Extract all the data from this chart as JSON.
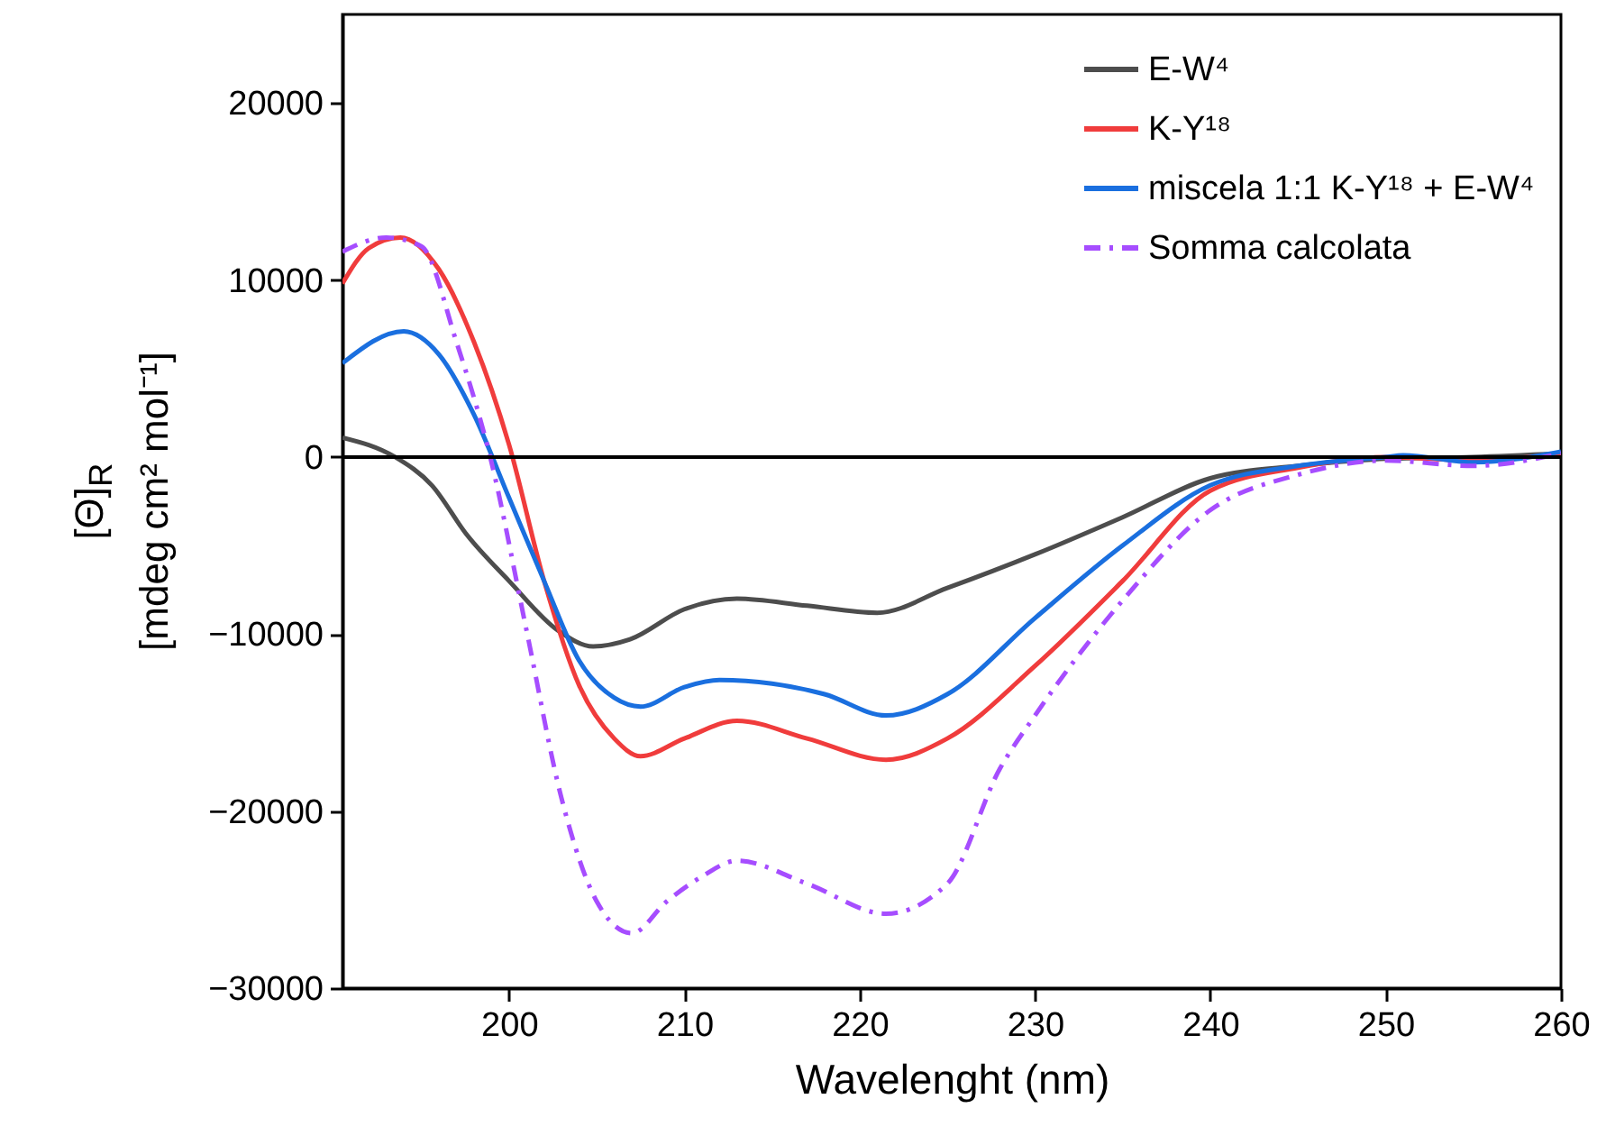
{
  "chart_data": {
    "type": "line",
    "xlabel": "Wavelenght (nm)",
    "ylabel": "[Θ]$_{R}$\n[mdeg cm² mol⁻¹]",
    "xlim": [
      190.5,
      260
    ],
    "xticks": [
      200,
      210,
      220,
      230,
      240,
      250,
      260
    ],
    "ylim": [
      -30000,
      25000
    ],
    "yticks": [
      -30000,
      -20000,
      -10000,
      0,
      10000,
      20000
    ],
    "grid": false,
    "legend": "top right",
    "ref_lines": [
      {
        "axis": "y",
        "value": 0,
        "color": "#000000"
      }
    ],
    "series": [
      {
        "name": "E-W⁴",
        "color": "#4d4d4d",
        "line_style": "solid",
        "x": [
          190.5,
          193.5,
          195.6,
          197.6,
          200,
          202.8,
          204.8,
          206.9,
          210,
          213,
          217,
          221,
          225,
          230,
          235,
          240,
          245,
          250,
          255,
          260
        ],
        "values": [
          1100,
          0,
          -1600,
          -4400,
          -7000,
          -9800,
          -10700,
          -10300,
          -8600,
          -8000,
          -8400,
          -8800,
          -7400,
          -5500,
          -3400,
          -1200,
          -500,
          -100,
          0,
          200
        ]
      },
      {
        "name": "K-Y¹⁸",
        "color": "#f03c3c",
        "line_style": "solid",
        "x": [
          190.5,
          192,
          193.8,
          196,
          198,
          200,
          202,
          204,
          206,
          207.5,
          210,
          213,
          217,
          221.5,
          225,
          230,
          235,
          240,
          245,
          250,
          255,
          260
        ],
        "values": [
          9800,
          11800,
          12400,
          10600,
          6500,
          700,
          -7000,
          -12900,
          -15900,
          -16900,
          -15900,
          -14900,
          -15900,
          -17100,
          -15900,
          -11800,
          -7000,
          -1900,
          -600,
          0,
          -200,
          200
        ]
      },
      {
        "name": "miscela 1:1 K-Y¹⁸ + E-W⁴",
        "color": "#1a6fdf",
        "line_style": "solid",
        "x": [
          190.5,
          194,
          196,
          198,
          200,
          202,
          204,
          206,
          207.5,
          210,
          212,
          215,
          218,
          221.5,
          225,
          230,
          235,
          240,
          245,
          250,
          251,
          255,
          260
        ],
        "values": [
          5300,
          7100,
          5800,
          2400,
          -2300,
          -7000,
          -11500,
          -13600,
          -14100,
          -13000,
          -12600,
          -12800,
          -13400,
          -14600,
          -13400,
          -9100,
          -5000,
          -1600,
          -500,
          0,
          100,
          -300,
          300
        ]
      },
      {
        "name": "Somma calcolata",
        "color": "#a64dff",
        "line_style": "dashed",
        "x": [
          190.5,
          193,
          195,
          197,
          199,
          201,
          203,
          205,
          207,
          209,
          211,
          213,
          217,
          221.5,
          225,
          228,
          230,
          235,
          240,
          245,
          250,
          255,
          260
        ],
        "values": [
          11600,
          12400,
          11900,
          6500,
          -300,
          -9800,
          -19300,
          -25100,
          -26900,
          -25100,
          -23700,
          -22800,
          -24100,
          -25800,
          -24100,
          -17600,
          -14600,
          -8100,
          -3000,
          -1000,
          -200,
          -500,
          200
        ]
      }
    ]
  }
}
